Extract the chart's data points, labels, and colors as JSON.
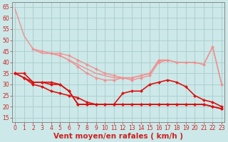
{
  "x": [
    0,
    1,
    2,
    3,
    4,
    5,
    6,
    7,
    8,
    9,
    10,
    11,
    12,
    13,
    14,
    15,
    16,
    17,
    18,
    19,
    20,
    21,
    22,
    23
  ],
  "series": [
    {
      "name": "light_top_curve",
      "color": "#f09090",
      "linewidth": 1.0,
      "marker": null,
      "markersize": 0,
      "values": [
        64,
        52,
        46,
        44,
        44,
        43,
        41,
        39,
        37,
        35,
        34,
        33,
        33,
        33,
        34,
        35,
        41,
        41,
        40,
        40,
        40,
        39,
        47,
        30
      ]
    },
    {
      "name": "light_mid_curve",
      "color": "#f09090",
      "linewidth": 1.0,
      "marker": "D",
      "markersize": 2,
      "values": [
        null,
        null,
        46,
        45,
        44,
        44,
        43,
        41,
        39,
        37,
        35,
        34,
        33,
        33,
        34,
        35,
        41,
        41,
        40,
        40,
        40,
        39,
        47,
        30
      ]
    },
    {
      "name": "light_lower_curve",
      "color": "#f09090",
      "linewidth": 1.0,
      "marker": "D",
      "markersize": 2,
      "values": [
        null,
        null,
        null,
        null,
        44,
        43,
        41,
        38,
        35,
        33,
        32,
        32,
        33,
        32,
        33,
        34,
        40,
        41,
        null,
        null,
        null,
        null,
        null,
        null
      ]
    },
    {
      "name": "dark_top",
      "color": "#dd1111",
      "linewidth": 1.2,
      "marker": "D",
      "markersize": 2,
      "values": [
        35,
        35,
        31,
        31,
        31,
        30,
        27,
        21,
        21,
        21,
        21,
        21,
        21,
        21,
        21,
        21,
        21,
        21,
        21,
        21,
        21,
        21,
        20,
        19
      ]
    },
    {
      "name": "dark_main",
      "color": "#dd1111",
      "linewidth": 1.2,
      "marker": "D",
      "markersize": 2,
      "values": [
        35,
        33,
        31,
        31,
        30,
        30,
        27,
        21,
        21,
        21,
        21,
        21,
        26,
        27,
        27,
        30,
        31,
        32,
        31,
        29,
        25,
        23,
        22,
        20
      ]
    },
    {
      "name": "dark_lower",
      "color": "#dd1111",
      "linewidth": 1.2,
      "marker": "D",
      "markersize": 2,
      "values": [
        35,
        33,
        30,
        29,
        27,
        26,
        25,
        24,
        22,
        21,
        21,
        21,
        21,
        21,
        21,
        21,
        21,
        21,
        21,
        21,
        21,
        21,
        20,
        19
      ]
    }
  ],
  "xlim": [
    -0.3,
    23.3
  ],
  "ylim": [
    13,
    67
  ],
  "yticks": [
    15,
    20,
    25,
    30,
    35,
    40,
    45,
    50,
    55,
    60,
    65
  ],
  "xticks": [
    0,
    1,
    2,
    3,
    4,
    5,
    6,
    7,
    8,
    9,
    10,
    11,
    12,
    13,
    14,
    15,
    16,
    17,
    18,
    19,
    20,
    21,
    22,
    23
  ],
  "xlabel": "Vent moyen/en rafales ( km/h )",
  "bg_color": "#cce8e8",
  "grid_color": "#aacccc",
  "spine_color": "#888888",
  "tick_color": "#cc2222",
  "tick_fontsize": 5.5,
  "xlabel_fontsize": 7.5,
  "xlabel_color": "#cc2222"
}
